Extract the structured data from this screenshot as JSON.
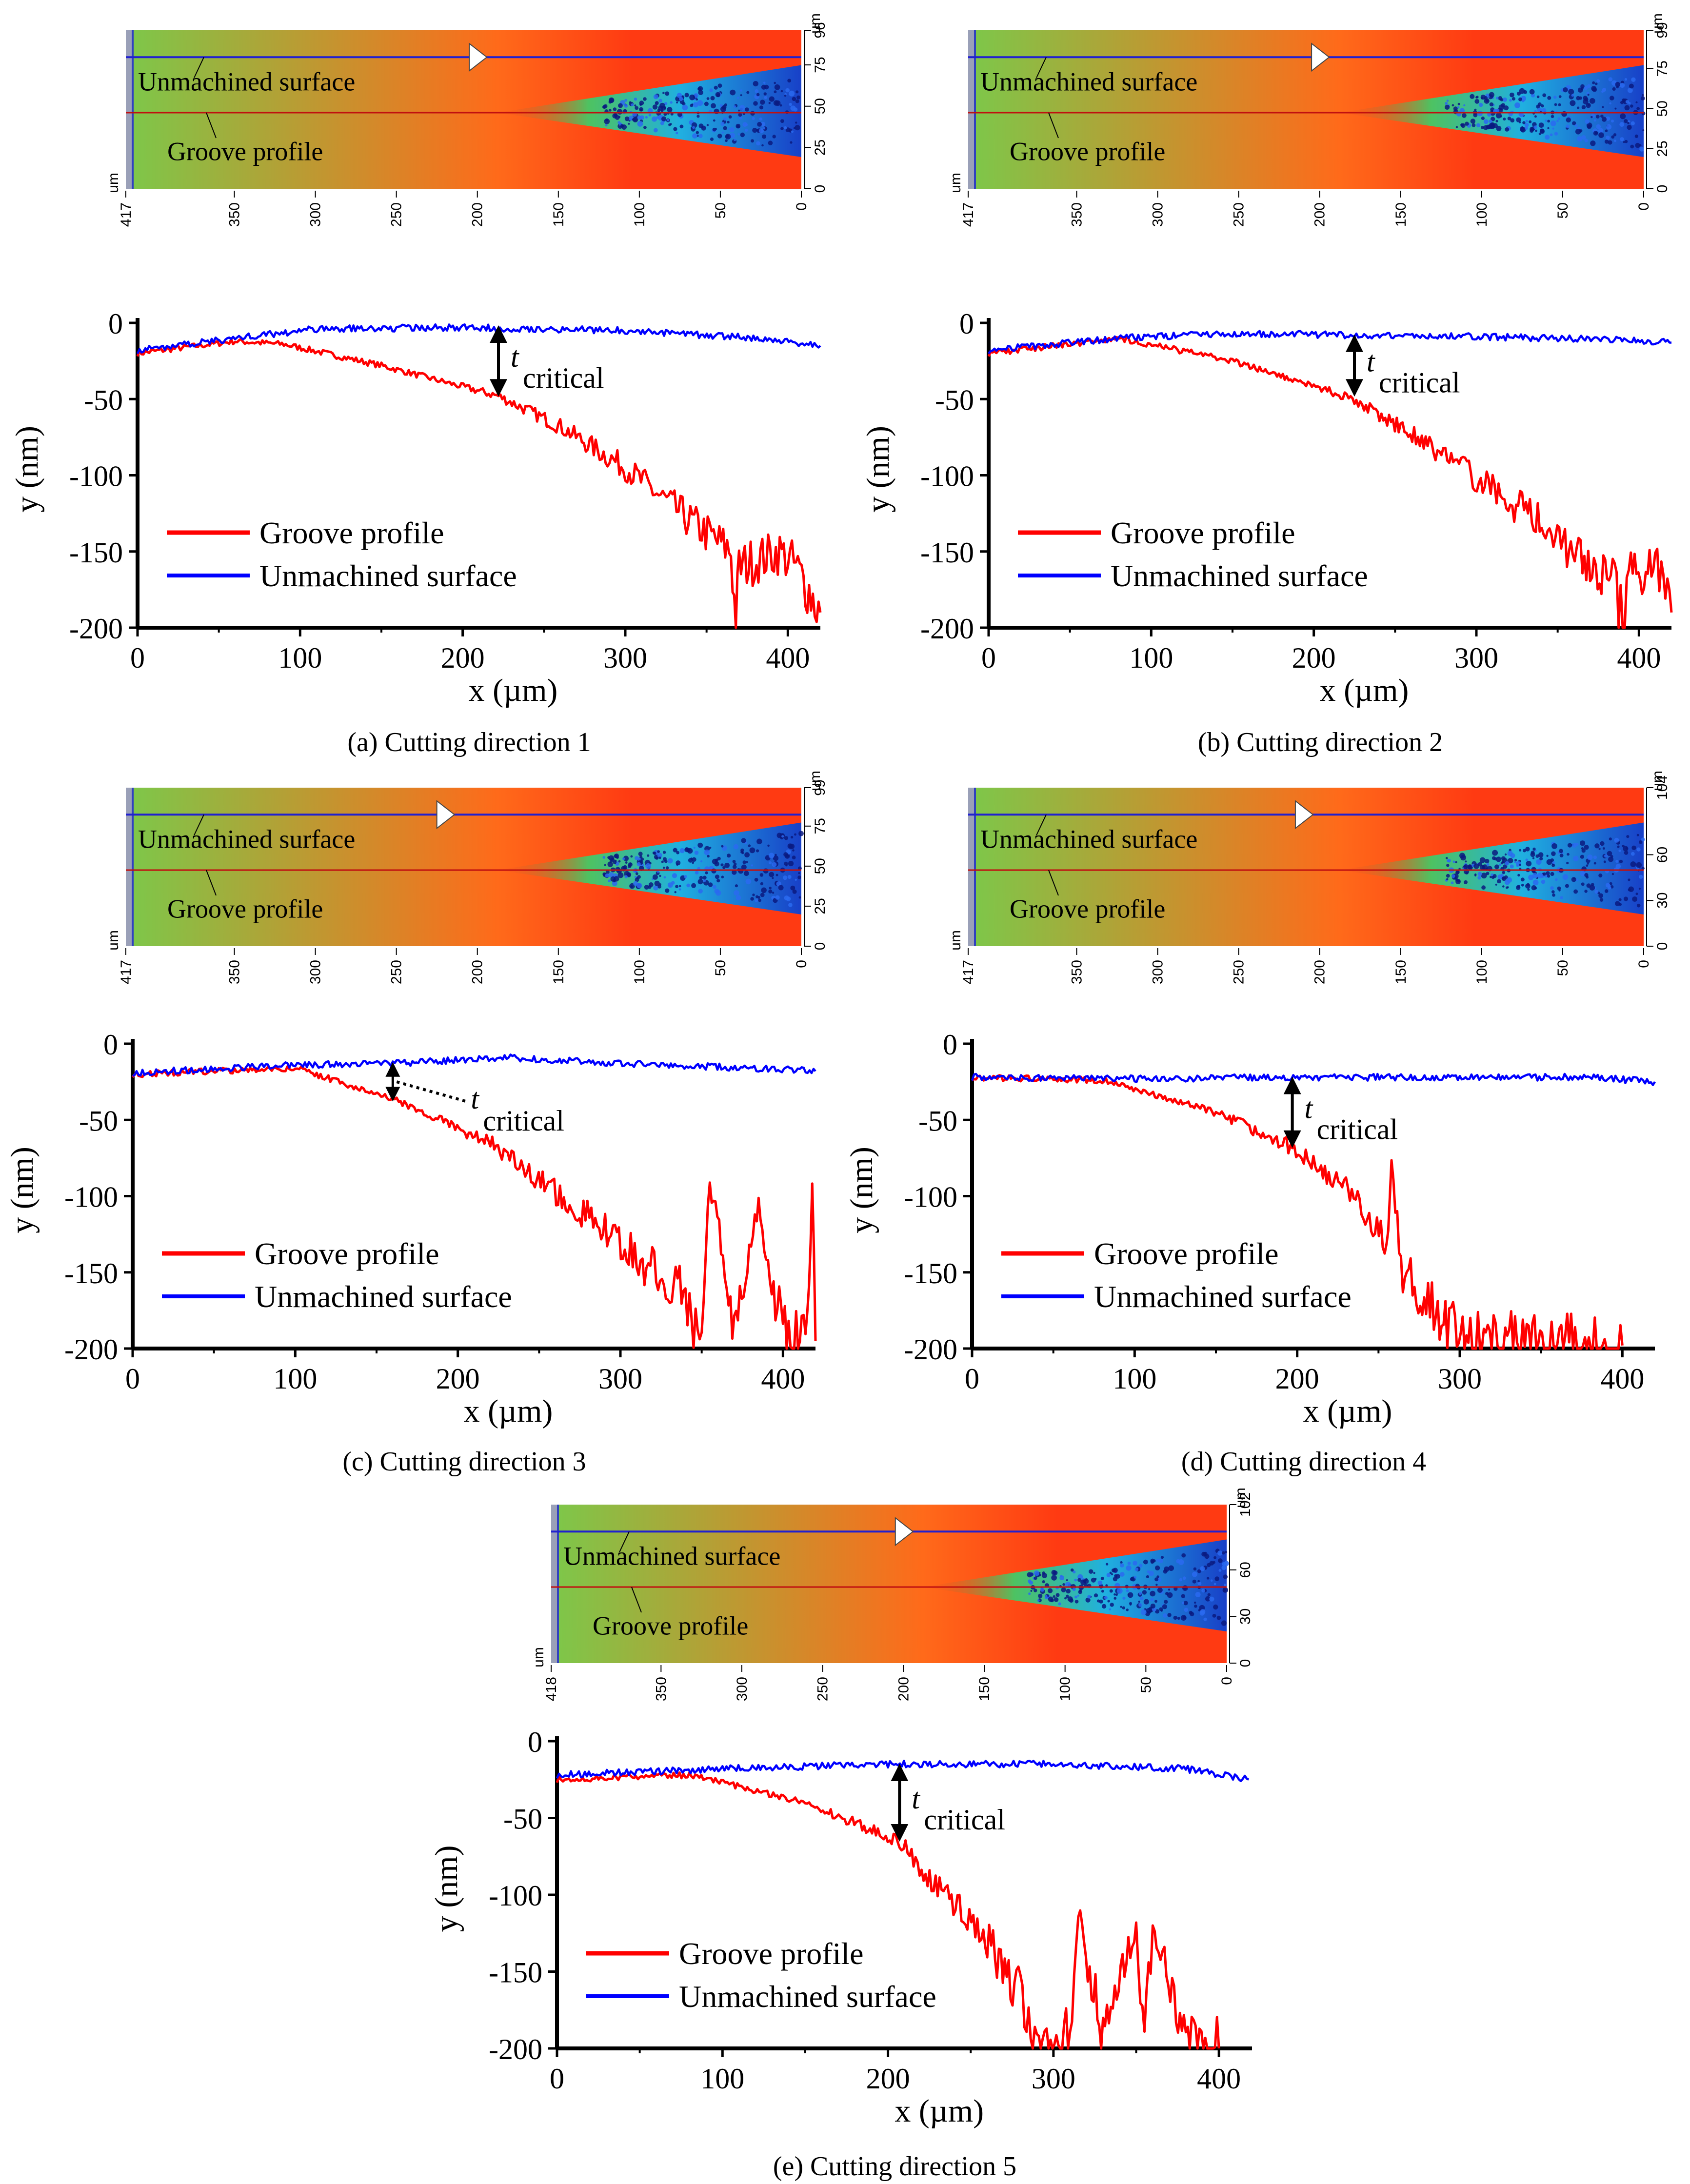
{
  "chart_data": [
    {
      "type": "line",
      "caption": "(a) Cutting direction 1",
      "xlabel": "x (µm)",
      "ylabel": "y (nm)",
      "xlim": [
        0,
        420
      ],
      "ylim": [
        -200,
        0
      ],
      "xticks": [
        0,
        100,
        200,
        300,
        400
      ],
      "yticks": [
        0,
        -50,
        -100,
        -150,
        -200
      ],
      "legend_position": "lower-left",
      "annotation": {
        "symbol": "t",
        "subscript": "critical",
        "x": 222,
        "y_top": -2,
        "y_bottom": -48,
        "style": "double-arrow"
      },
      "series": [
        {
          "name": "Groove profile",
          "color": "#ff0000",
          "x": [
            0,
            60,
            90,
            150,
            222,
            260,
            300,
            340,
            365,
            368,
            370,
            395,
            405,
            420
          ],
          "y": [
            -20,
            -12,
            -14,
            -28,
            -48,
            -68,
            -95,
            -130,
            -150,
            -198,
            -160,
            -150,
            -160,
            -190
          ]
        },
        {
          "name": "Unmachined surface",
          "color": "#0000ff",
          "x": [
            0,
            60,
            110,
            200,
            300,
            380,
            420
          ],
          "y": [
            -18,
            -10,
            -4,
            -3,
            -5,
            -10,
            -15
          ]
        }
      ],
      "map": {
        "top_ticks_right": [
          0,
          25,
          50,
          75,
          96
        ],
        "x_ticks": [
          417,
          350,
          300,
          250,
          200,
          150,
          100,
          50,
          0
        ],
        "unit_left": "um",
        "unit_right": "um",
        "label_upper": "Unmachined surface",
        "label_lower": "Groove profile",
        "marker_x": 205,
        "colors": {
          "left": "#7cc84a",
          "mid": "#ff3a12",
          "band": "#1840c8"
        }
      }
    },
    {
      "type": "line",
      "caption": "(b) Cutting direction 2",
      "xlabel": "x (µm)",
      "ylabel": "y (nm)",
      "xlim": [
        0,
        420
      ],
      "ylim": [
        -200,
        0
      ],
      "xticks": [
        0,
        100,
        200,
        300,
        400
      ],
      "yticks": [
        0,
        -50,
        -100,
        -150,
        -200
      ],
      "legend_position": "lower-left",
      "annotation": {
        "symbol": "t",
        "subscript": "critical",
        "x": 225,
        "y_top": -8,
        "y_bottom": -48,
        "style": "double-arrow"
      },
      "series": [
        {
          "name": "Groove profile",
          "color": "#ff0000",
          "x": [
            0,
            80,
            150,
            225,
            270,
            310,
            345,
            370,
            385,
            390,
            395,
            410,
            420
          ],
          "y": [
            -20,
            -10,
            -25,
            -50,
            -80,
            -110,
            -135,
            -160,
            -170,
            -198,
            -165,
            -160,
            -190
          ]
        },
        {
          "name": "Unmachined surface",
          "color": "#0000ff",
          "x": [
            0,
            80,
            150,
            225,
            300,
            380,
            420
          ],
          "y": [
            -18,
            -10,
            -7,
            -8,
            -9,
            -11,
            -13
          ]
        }
      ],
      "map": {
        "top_ticks_right": [
          0,
          25,
          50,
          75,
          99
        ],
        "x_ticks": [
          417,
          350,
          300,
          250,
          200,
          150,
          100,
          50,
          0
        ],
        "unit_left": "um",
        "unit_right": "um",
        "label_upper": "Unmachined surface",
        "label_lower": "Groove profile",
        "marker_x": 205,
        "colors": {
          "left": "#7cc84a",
          "mid": "#ff3a12",
          "band": "#1840c8"
        }
      }
    },
    {
      "type": "line",
      "caption": "(c) Cutting direction 3",
      "xlabel": "x (µm)",
      "ylabel": "y (nm)",
      "xlim": [
        0,
        420
      ],
      "ylim": [
        -200,
        0
      ],
      "xticks": [
        0,
        100,
        200,
        300,
        400
      ],
      "yticks": [
        0,
        -50,
        -100,
        -150,
        -200
      ],
      "legend_position": "lower-left",
      "annotation": {
        "symbol": "t",
        "subscript": "critical",
        "x": 160,
        "y_top": -14,
        "y_bottom": -36,
        "style": "dotted"
      },
      "series": [
        {
          "name": "Groove profile",
          "color": "#ff0000",
          "x": [
            0,
            100,
            160,
            220,
            270,
            310,
            340,
            350,
            355,
            370,
            385,
            400,
            415,
            418,
            420
          ],
          "y": [
            -20,
            -16,
            -36,
            -65,
            -105,
            -140,
            -165,
            -198,
            -90,
            -185,
            -110,
            -190,
            -195,
            -100,
            -195
          ]
        },
        {
          "name": "Unmachined surface",
          "color": "#0000ff",
          "x": [
            0,
            100,
            160,
            230,
            300,
            380,
            420
          ],
          "y": [
            -19,
            -14,
            -13,
            -9,
            -13,
            -16,
            -18
          ]
        }
      ],
      "map": {
        "top_ticks_right": [
          0,
          25,
          50,
          75,
          99
        ],
        "x_ticks": [
          417,
          350,
          300,
          250,
          200,
          150,
          100,
          50,
          0
        ],
        "unit_left": "um",
        "unit_right": "um",
        "label_upper": "Unmachined surface",
        "label_lower": "Groove profile",
        "marker_x": 225,
        "colors": {
          "left": "#7cc84a",
          "mid": "#ff3a12",
          "band": "#1840c8"
        }
      }
    },
    {
      "type": "line",
      "caption": "(d) Cutting direction 4",
      "xlabel": "x (µm)",
      "ylabel": "y (nm)",
      "xlim": [
        0,
        420
      ],
      "ylim": [
        -200,
        0
      ],
      "xticks": [
        0,
        100,
        200,
        300,
        400
      ],
      "yticks": [
        0,
        -50,
        -100,
        -150,
        -200
      ],
      "legend_position": "lower-left",
      "annotation": {
        "symbol": "t",
        "subscript": "critical",
        "x": 197,
        "y_top": -22,
        "y_bottom": -68,
        "style": "double-arrow"
      },
      "series": [
        {
          "name": "Groove profile",
          "color": "#ff0000",
          "x": [
            0,
            80,
            150,
            197,
            230,
            255,
            258,
            265,
            290,
            310,
            340,
            360,
            400
          ],
          "y": [
            -22,
            -24,
            -45,
            -68,
            -95,
            -130,
            -78,
            -150,
            -180,
            -195,
            -190,
            -198,
            -198
          ]
        },
        {
          "name": "Unmachined surface",
          "color": "#0000ff",
          "x": [
            0,
            100,
            200,
            300,
            380,
            420
          ],
          "y": [
            -22,
            -23,
            -22,
            -22,
            -22,
            -25
          ]
        }
      ],
      "map": {
        "top_ticks_right": [
          0,
          30,
          60,
          104
        ],
        "x_ticks": [
          417,
          350,
          300,
          250,
          200,
          150,
          100,
          50,
          0
        ],
        "unit_left": "um",
        "unit_right": "um",
        "label_upper": "Unmachined surface",
        "label_lower": "Groove profile",
        "marker_x": 215,
        "colors": {
          "left": "#7cc84a",
          "mid": "#ff3a12",
          "band": "#1840c8"
        }
      }
    },
    {
      "type": "line",
      "caption": "(e) Cutting direction 5",
      "xlabel": "x (µm)",
      "ylabel": "y (nm)",
      "xlim": [
        0,
        420
      ],
      "ylim": [
        -200,
        0
      ],
      "xticks": [
        0,
        100,
        200,
        300,
        400
      ],
      "yticks": [
        0,
        -50,
        -100,
        -150,
        -200
      ],
      "legend_position": "lower-left",
      "annotation": {
        "symbol": "t",
        "subscript": "critical",
        "x": 207,
        "y_top": -15,
        "y_bottom": -65,
        "style": "double-arrow"
      },
      "series": [
        {
          "name": "Groove profile",
          "color": "#ff0000",
          "x": [
            0,
            80,
            150,
            207,
            230,
            260,
            280,
            290,
            310,
            315,
            330,
            350,
            355,
            360,
            380,
            400
          ],
          "y": [
            -25,
            -22,
            -40,
            -65,
            -95,
            -130,
            -165,
            -198,
            -185,
            -110,
            -195,
            -120,
            -198,
            -118,
            -198,
            -200
          ]
        },
        {
          "name": "Unmachined surface",
          "color": "#0000ff",
          "x": [
            0,
            100,
            200,
            300,
            380,
            418
          ],
          "y": [
            -22,
            -18,
            -15,
            -15,
            -18,
            -25
          ]
        }
      ],
      "map": {
        "top_ticks_right": [
          0,
          30,
          60,
          102
        ],
        "x_ticks": [
          418,
          350,
          300,
          250,
          200,
          150,
          100,
          50,
          0
        ],
        "unit_left": "um",
        "unit_right": "um",
        "label_upper": "Unmachined surface",
        "label_lower": "Groove profile",
        "marker_x": 205,
        "colors": {
          "left": "#7cc84a",
          "mid": "#ff3a12",
          "band": "#1840c8"
        }
      }
    }
  ]
}
